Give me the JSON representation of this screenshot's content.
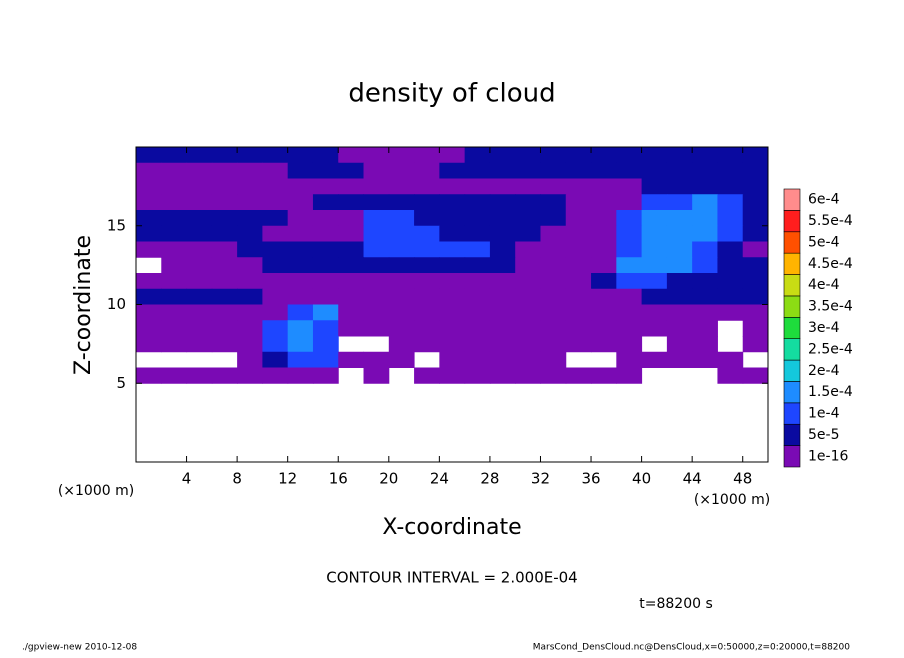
{
  "chart_data": {
    "type": "contour",
    "title": "density of cloud",
    "x_label": "X-coordinate",
    "y_label": "Z-coordinate",
    "x_unit": "(×1000 m)",
    "annotation": "CONTOUR INTERVAL = 2.000E-04",
    "time_label": "t=88200 s",
    "footer_left": "./gpview-new  2010-12-08",
    "footer_right": "MarsCond_DensCloud.nc@DensCloud,x=0:50000,z=0:20000,t=88200",
    "xlim": [
      0,
      50
    ],
    "ylim": [
      0,
      20
    ],
    "xticks": [
      4,
      8,
      12,
      16,
      20,
      24,
      28,
      32,
      36,
      40,
      44,
      48
    ],
    "yticks": [
      5,
      10,
      15
    ],
    "x": [
      1,
      3,
      5,
      7,
      9,
      11,
      13,
      15,
      17,
      19,
      21,
      23,
      25,
      27,
      29,
      31,
      33,
      35,
      37,
      39,
      41,
      43,
      45,
      47,
      49
    ],
    "y": [
      19.5,
      18.5,
      17.5,
      16.5,
      15.5,
      14.5,
      13.5,
      12.5,
      11.5,
      10.5,
      9.5,
      8.5,
      7.5,
      6.5,
      5.5
    ],
    "values": [
      [
        7e-05,
        7e-05,
        7e-05,
        7e-05,
        7e-05,
        7e-05,
        7e-05,
        7e-05,
        2e-05,
        2e-05,
        2e-05,
        2e-05,
        2e-05,
        7e-05,
        7e-05,
        7e-05,
        7e-05,
        7e-05,
        7e-05,
        7e-05,
        7e-05,
        7e-05,
        7e-05,
        7e-05,
        7e-05
      ],
      [
        2e-05,
        2e-05,
        2e-05,
        2e-05,
        2e-05,
        2e-05,
        7e-05,
        7e-05,
        7e-05,
        2e-05,
        2e-05,
        2e-05,
        7e-05,
        7e-05,
        7e-05,
        7e-05,
        7e-05,
        7e-05,
        7e-05,
        7e-05,
        7e-05,
        7e-05,
        7e-05,
        7e-05,
        7e-05
      ],
      [
        2e-05,
        2e-05,
        2e-05,
        2e-05,
        2e-05,
        2e-05,
        2e-05,
        2e-05,
        2e-05,
        2e-05,
        2e-05,
        2e-05,
        2e-05,
        2e-05,
        2e-05,
        2e-05,
        2e-05,
        2e-05,
        2e-05,
        2e-05,
        7e-05,
        7e-05,
        7e-05,
        7e-05,
        7e-05
      ],
      [
        2e-05,
        2e-05,
        2e-05,
        2e-05,
        2e-05,
        2e-05,
        2e-05,
        7e-05,
        7e-05,
        7e-05,
        7e-05,
        7e-05,
        7e-05,
        7e-05,
        7e-05,
        7e-05,
        7e-05,
        2e-05,
        2e-05,
        2e-05,
        0.00012,
        0.00012,
        0.00017,
        0.00012,
        7e-05
      ],
      [
        7e-05,
        7e-05,
        7e-05,
        7e-05,
        7e-05,
        7e-05,
        2e-05,
        2e-05,
        2e-05,
        0.00012,
        0.00012,
        7e-05,
        7e-05,
        7e-05,
        7e-05,
        7e-05,
        7e-05,
        2e-05,
        2e-05,
        0.00012,
        0.00017,
        0.00017,
        0.00017,
        0.00012,
        7e-05
      ],
      [
        7e-05,
        7e-05,
        7e-05,
        7e-05,
        7e-05,
        2e-05,
        2e-05,
        2e-05,
        2e-05,
        0.00012,
        0.00012,
        0.00012,
        7e-05,
        7e-05,
        7e-05,
        7e-05,
        2e-05,
        2e-05,
        2e-05,
        0.00012,
        0.00017,
        0.00017,
        0.00017,
        0.00012,
        7e-05
      ],
      [
        2e-05,
        2e-05,
        2e-05,
        2e-05,
        7e-05,
        7e-05,
        7e-05,
        7e-05,
        7e-05,
        0.00012,
        0.00012,
        0.00012,
        0.00012,
        0.00012,
        7e-05,
        2e-05,
        2e-05,
        2e-05,
        2e-05,
        0.00012,
        0.00017,
        0.00017,
        0.00012,
        7e-05,
        2e-05
      ],
      [
        null,
        2e-05,
        2e-05,
        2e-05,
        2e-05,
        7e-05,
        7e-05,
        7e-05,
        7e-05,
        7e-05,
        7e-05,
        7e-05,
        7e-05,
        7e-05,
        7e-05,
        2e-05,
        2e-05,
        2e-05,
        2e-05,
        0.00017,
        0.00017,
        0.00017,
        0.00012,
        7e-05,
        7e-05
      ],
      [
        2e-05,
        2e-05,
        2e-05,
        2e-05,
        2e-05,
        2e-05,
        2e-05,
        2e-05,
        2e-05,
        2e-05,
        2e-05,
        2e-05,
        2e-05,
        2e-05,
        2e-05,
        2e-05,
        2e-05,
        2e-05,
        7e-05,
        0.00012,
        0.00012,
        7e-05,
        7e-05,
        7e-05,
        7e-05
      ],
      [
        7e-05,
        7e-05,
        7e-05,
        7e-05,
        7e-05,
        2e-05,
        2e-05,
        2e-05,
        2e-05,
        2e-05,
        2e-05,
        2e-05,
        2e-05,
        2e-05,
        2e-05,
        2e-05,
        2e-05,
        2e-05,
        2e-05,
        2e-05,
        7e-05,
        7e-05,
        7e-05,
        7e-05,
        7e-05
      ],
      [
        2e-05,
        2e-05,
        2e-05,
        2e-05,
        2e-05,
        2e-05,
        0.00012,
        0.00017,
        2e-05,
        2e-05,
        2e-05,
        2e-05,
        2e-05,
        2e-05,
        2e-05,
        2e-05,
        2e-05,
        2e-05,
        2e-05,
        2e-05,
        2e-05,
        2e-05,
        2e-05,
        2e-05,
        2e-05
      ],
      [
        2e-05,
        2e-05,
        2e-05,
        2e-05,
        2e-05,
        0.00012,
        0.00017,
        0.00012,
        2e-05,
        2e-05,
        2e-05,
        2e-05,
        2e-05,
        2e-05,
        2e-05,
        2e-05,
        2e-05,
        2e-05,
        2e-05,
        2e-05,
        2e-05,
        2e-05,
        2e-05,
        null,
        2e-05
      ],
      [
        2e-05,
        2e-05,
        2e-05,
        2e-05,
        2e-05,
        0.00012,
        0.00017,
        0.00012,
        null,
        null,
        2e-05,
        2e-05,
        2e-05,
        2e-05,
        2e-05,
        2e-05,
        2e-05,
        2e-05,
        2e-05,
        2e-05,
        null,
        2e-05,
        2e-05,
        null,
        2e-05
      ],
      [
        null,
        null,
        null,
        null,
        2e-05,
        7e-05,
        0.00012,
        0.00012,
        2e-05,
        2e-05,
        2e-05,
        null,
        2e-05,
        2e-05,
        2e-05,
        2e-05,
        2e-05,
        null,
        null,
        2e-05,
        2e-05,
        2e-05,
        2e-05,
        2e-05,
        null
      ],
      [
        2e-05,
        2e-05,
        2e-05,
        2e-05,
        2e-05,
        2e-05,
        2e-05,
        2e-05,
        null,
        2e-05,
        null,
        2e-05,
        2e-05,
        2e-05,
        2e-05,
        2e-05,
        2e-05,
        2e-05,
        2e-05,
        2e-05,
        null,
        null,
        null,
        2e-05,
        2e-05
      ]
    ],
    "levels": [
      {
        "value": 1e-16,
        "label": "1e-16"
      },
      {
        "value": 5e-05,
        "label": "5e-5"
      },
      {
        "value": 0.0001,
        "label": "1e-4"
      },
      {
        "value": 0.00015,
        "label": "1.5e-4"
      },
      {
        "value": 0.0002,
        "label": "2e-4"
      },
      {
        "value": 0.00025,
        "label": "2.5e-4"
      },
      {
        "value": 0.0003,
        "label": "3e-4"
      },
      {
        "value": 0.00035,
        "label": "3.5e-4"
      },
      {
        "value": 0.0004,
        "label": "4e-4"
      },
      {
        "value": 0.00045,
        "label": "4.5e-4"
      },
      {
        "value": 0.0005,
        "label": "5e-4"
      },
      {
        "value": 0.00055,
        "label": "5.5e-4"
      },
      {
        "value": 0.0006,
        "label": "6e-4"
      }
    ],
    "colors": [
      "#7a0ab4",
      "#0a0aa0",
      "#1e46ff",
      "#1e8cff",
      "#14c8dc",
      "#14dca0",
      "#1edc3c",
      "#8cdc14",
      "#c8dc14",
      "#ffb400",
      "#ff5000",
      "#ff1e1e",
      "#ff8c8c"
    ]
  }
}
